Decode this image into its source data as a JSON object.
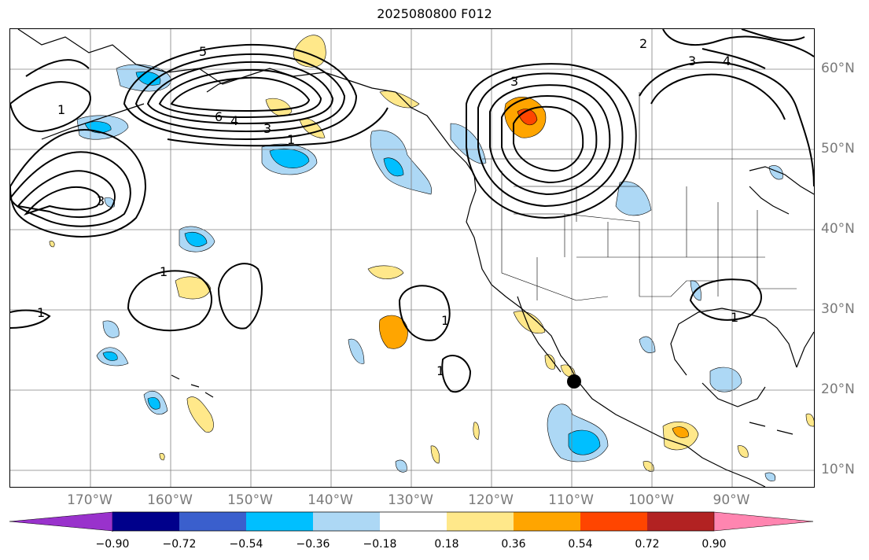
{
  "title": "2025080800 F012",
  "lon_labels": [
    "170°W",
    "160°W",
    "150°W",
    "140°W",
    "130°W",
    "120°W",
    "110°W",
    "100°W",
    "90°W"
  ],
  "lat_labels": [
    "60°N",
    "50°N",
    "40°N",
    "30°N",
    "20°N",
    "10°N"
  ],
  "colorbar": {
    "ticks": [
      "−0.90",
      "−0.72",
      "−0.54",
      "−0.36",
      "−0.18",
      "0.18",
      "0.36",
      "0.54",
      "0.72",
      "0.90"
    ],
    "colors": [
      "#9932cc",
      "#00008b",
      "#3a5fcd",
      "#00bfff",
      "#add8f5",
      "#ffffff",
      "#ffe88a",
      "#ffa500",
      "#ff4500",
      "#b22222",
      "#ff85b0"
    ]
  },
  "contour_labels": [
    "1",
    "2",
    "3",
    "4",
    "5",
    "6"
  ],
  "marker": {
    "name": "point-marker",
    "lon": -110,
    "lat": 21
  }
}
